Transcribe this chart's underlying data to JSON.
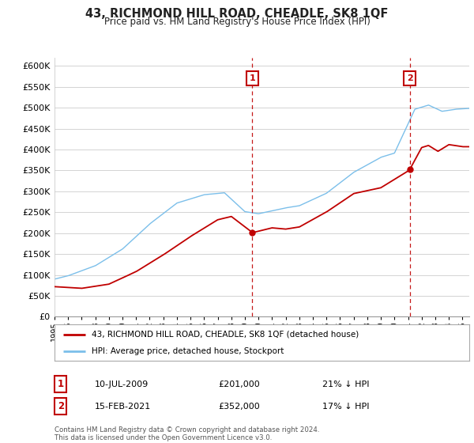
{
  "title": "43, RICHMOND HILL ROAD, CHEADLE, SK8 1QF",
  "subtitle": "Price paid vs. HM Land Registry's House Price Index (HPI)",
  "hpi_label": "HPI: Average price, detached house, Stockport",
  "property_label": "43, RICHMOND HILL ROAD, CHEADLE, SK8 1QF (detached house)",
  "hpi_color": "#7bbfea",
  "property_color": "#c00000",
  "vline_color": "#c00000",
  "marker1_year": 2009.54,
  "marker2_year": 2021.12,
  "marker1_value": 201000,
  "marker2_value": 352000,
  "marker1_label": "10-JUL-2009",
  "marker2_label": "15-FEB-2021",
  "marker1_pct": "21% ↓ HPI",
  "marker2_pct": "17% ↓ HPI",
  "ylim_min": 0,
  "ylim_max": 620000,
  "yticks": [
    0,
    50000,
    100000,
    150000,
    200000,
    250000,
    300000,
    350000,
    400000,
    450000,
    500000,
    550000,
    600000
  ],
  "footnote": "Contains HM Land Registry data © Crown copyright and database right 2024.\nThis data is licensed under the Open Government Licence v3.0.",
  "background_color": "#ffffff",
  "grid_color": "#cccccc"
}
